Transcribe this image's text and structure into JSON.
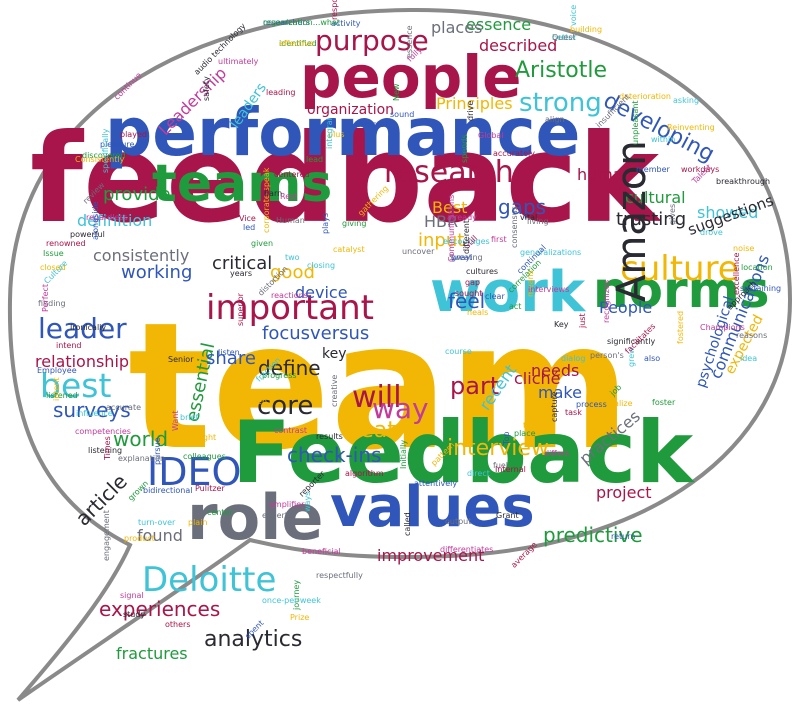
{
  "colors": {
    "crimson": "#a8154a",
    "blue": "#2f56b8",
    "green": "#1f9a3c",
    "gold": "#f2b705",
    "cyan": "#3fc3d6",
    "gray": "#6b6f7b",
    "magenta": "#c23b9a",
    "dark": "#2a2a33",
    "outline": "#8a8a8a"
  },
  "words": [
    {
      "t": "feedback",
      "c": "crimson"
    },
    {
      "t": "team",
      "c": "gold"
    },
    {
      "t": "Feedback",
      "c": "green"
    },
    {
      "t": "performance",
      "c": "blue"
    },
    {
      "t": "people",
      "c": "crimson"
    },
    {
      "t": "work",
      "c": "cyan"
    },
    {
      "t": "norms",
      "c": "green"
    },
    {
      "t": "role",
      "c": "gray"
    },
    {
      "t": "values",
      "c": "blue"
    },
    {
      "t": "teams",
      "c": "green"
    },
    {
      "t": "important",
      "c": "crimson"
    },
    {
      "t": "culture",
      "c": "gold"
    },
    {
      "t": "Deloitte",
      "c": "cyan"
    },
    {
      "t": "Amazon",
      "c": "dark"
    },
    {
      "t": "IDEO",
      "c": "blue"
    },
    {
      "t": "purpose",
      "c": "crimson"
    },
    {
      "t": "research",
      "c": "crimson"
    },
    {
      "t": "best",
      "c": "cyan"
    },
    {
      "t": "leader",
      "c": "blue"
    },
    {
      "t": "strong",
      "c": "cyan"
    },
    {
      "t": "Aristotle",
      "c": "green"
    },
    {
      "t": "developing",
      "c": "blue"
    },
    {
      "t": "check-ins",
      "c": "blue"
    },
    {
      "t": "will",
      "c": "crimson"
    },
    {
      "t": "treat",
      "c": "gold"
    },
    {
      "t": "way",
      "c": "magenta"
    },
    {
      "t": "core",
      "c": "dark"
    },
    {
      "t": "part",
      "c": "crimson"
    },
    {
      "t": "interview",
      "c": "gold"
    },
    {
      "t": "analytics",
      "c": "dark"
    },
    {
      "t": "experiences",
      "c": "crimson"
    },
    {
      "t": "article",
      "c": "dark"
    },
    {
      "t": "surveys",
      "c": "blue"
    },
    {
      "t": "world",
      "c": "green"
    },
    {
      "t": "essential",
      "c": "green"
    },
    {
      "t": "define",
      "c": "dark"
    },
    {
      "t": "versus",
      "c": "blue"
    },
    {
      "t": "focus",
      "c": "blue"
    },
    {
      "t": "share",
      "c": "blue"
    },
    {
      "t": "gaps",
      "c": "blue"
    },
    {
      "t": "good",
      "c": "gold"
    },
    {
      "t": "working",
      "c": "blue"
    },
    {
      "t": "critical",
      "c": "dark"
    },
    {
      "t": "device",
      "c": "blue"
    },
    {
      "t": "key",
      "c": "dark"
    },
    {
      "t": "feel",
      "c": "blue"
    },
    {
      "t": "input",
      "c": "gold"
    },
    {
      "t": "HBR",
      "c": "gray"
    },
    {
      "t": "Best",
      "c": "gold"
    },
    {
      "t": "People",
      "c": "blue"
    },
    {
      "t": "showed",
      "c": "cyan"
    },
    {
      "t": "suggestions",
      "c": "dark"
    },
    {
      "t": "trusting",
      "c": "dark"
    },
    {
      "t": "cultural",
      "c": "green"
    },
    {
      "t": "human",
      "c": "crimson"
    },
    {
      "t": "provide",
      "c": "green"
    },
    {
      "t": "consistently",
      "c": "gray"
    },
    {
      "t": "definition",
      "c": "cyan"
    },
    {
      "t": "relationship",
      "c": "crimson"
    },
    {
      "t": "communications",
      "c": "blue"
    },
    {
      "t": "expected",
      "c": "gold"
    },
    {
      "t": "psychological",
      "c": "blue"
    },
    {
      "t": "recent",
      "c": "cyan"
    },
    {
      "t": "needs",
      "c": "crimson"
    },
    {
      "t": "make",
      "c": "blue"
    },
    {
      "t": "cliché",
      "c": "crimson"
    },
    {
      "t": "practices",
      "c": "gray"
    },
    {
      "t": "predictive",
      "c": "green"
    },
    {
      "t": "improvement",
      "c": "crimson"
    },
    {
      "t": "fractures",
      "c": "green"
    },
    {
      "t": "found",
      "c": "gray"
    },
    {
      "t": "project",
      "c": "crimson"
    },
    {
      "t": "described",
      "c": "crimson"
    },
    {
      "t": "essence",
      "c": "green"
    },
    {
      "t": "places",
      "c": "gray"
    },
    {
      "t": "Leadership",
      "c": "magenta"
    },
    {
      "t": "organization",
      "c": "crimson"
    },
    {
      "t": "Principles",
      "c": "gold"
    },
    {
      "t": "leaders",
      "c": "cyan"
    },
    {
      "t": "Amazon",
      "c": "dark"
    }
  ],
  "small_words": [
    "response",
    "researchers",
    "identified",
    "building",
    "better",
    "essence",
    "ultimately",
    "audio technology",
    "leading",
    "sound",
    "New",
    "deterioration",
    "asking",
    "align",
    "continue",
    "safety",
    "played",
    "pleasure",
    "discovered",
    "Consistently",
    "specifically",
    "review",
    "regardless",
    "powerful",
    "renowned",
    "alongside",
    "Issue",
    "closed",
    "Culture",
    "finding",
    "Perfect",
    "Ironically",
    "intend",
    "Employee",
    "listened",
    "intent",
    "influence",
    "accurate",
    "competencies",
    "listening",
    "Times",
    "bidirectional",
    "grown",
    "product",
    "turn-over",
    "engagement",
    "signal",
    "study",
    "others",
    "spent",
    "journey",
    "Prize",
    "once-per-week",
    "respectfully",
    "beneficial",
    "called",
    "average",
    "return",
    "center",
    "plain",
    "ways",
    "experts",
    "amplifier",
    "reporter",
    "Pulitzer",
    "pursue",
    "colleagues",
    "highlight",
    "brief",
    "explanation",
    "Want",
    "Senior",
    "Vice",
    "led",
    "given",
    "corporate-speak",
    "two",
    "distortion",
    "reactions",
    "years",
    "superior",
    "listen",
    "progress",
    "aren't",
    "fraction",
    "creative",
    "contrast",
    "results",
    "algorithm",
    "attentively",
    "Initially",
    "pattern",
    "direct",
    "fuel",
    "differs",
    "capture",
    "task",
    "process",
    "job",
    "realize",
    "grew",
    "output",
    "differentiates",
    "Grant",
    "Internal",
    "Top",
    "place",
    "trust",
    "dialog",
    "person's",
    "recognizes",
    "significantly",
    "facilitates",
    "also",
    "foster",
    "fostered",
    "idea",
    "reasons",
    "Champions",
    "approach",
    "excellence",
    "sustaining",
    "location",
    "noise",
    "drove",
    "gives",
    "Talent",
    "breakthrough",
    "workdays",
    "member",
    "unpleasant",
    "Reinventing",
    "within",
    "insufficient",
    "Global",
    "drive",
    "accurately",
    "Director",
    "lead",
    "plus",
    "integral",
    "Human",
    "Rest",
    "Earn",
    "centered",
    "plays",
    "giving",
    "gathering",
    "encourages",
    "Swaying",
    "Communications",
    "cultures",
    "gap",
    "clear",
    "correlation",
    "means",
    "generalizations",
    "living",
    "interviews",
    "Key",
    "just",
    "continual",
    "act",
    "heals",
    "course",
    "consensus",
    "first",
    "vital",
    "Still",
    "great",
    "spends",
    "catalyst",
    "closing",
    "uncover",
    "already",
    "different",
    "sought",
    "activity",
    "organization...what",
    "effective",
    "voice",
    "Quest",
    "fully"
  ]
}
